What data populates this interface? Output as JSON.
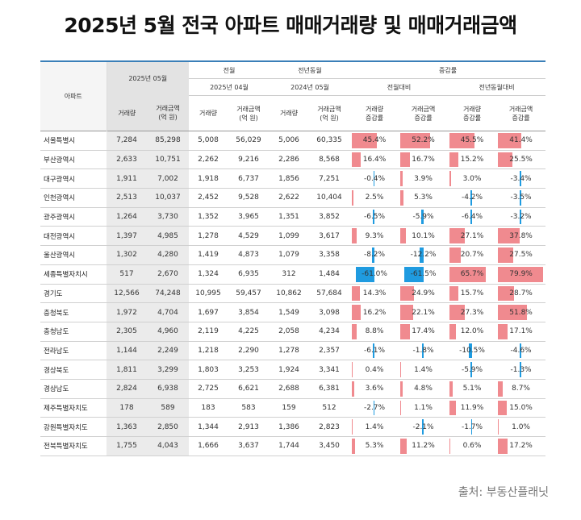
{
  "title": "2025년 5월 전국 아파트 매매거래량 및 매매거래금액",
  "source": "출처: 부동산플래닛",
  "colors": {
    "positive_bar": "#f08a8f",
    "negative_bar": "#1f9be0",
    "header_fill": "#e3e3e3",
    "accent_line": "#3a7fb8"
  },
  "chart_data": {
    "type": "table",
    "headers": {
      "region": "아파트",
      "current": "2025년 05월",
      "prev_month_group": "전월",
      "prev_month": "2025년 04월",
      "prev_year_group": "전년동월",
      "prev_year": "2024년 05월",
      "rate_group": "증감률",
      "vs_prev_month": "전월대비",
      "vs_prev_year": "전년동월대비",
      "volume": "거래량",
      "amount": "거래금액\n(억 원)",
      "volume_rate": "거래량\n증감률",
      "amount_rate": "거래금액\n증감률"
    },
    "rows": [
      {
        "region": "서울특별시",
        "v25_05": "7,284",
        "a25_05": "85,298",
        "v25_04": "5,008",
        "a25_04": "56,029",
        "v24_05": "5,006",
        "a24_05": "60,335",
        "mom_v": "45.4%",
        "mom_a": "52.2%",
        "yoy_v": "45.5%",
        "yoy_a": "41.4%"
      },
      {
        "region": "부산광역시",
        "v25_05": "2,633",
        "a25_05": "10,751",
        "v25_04": "2,262",
        "a25_04": "9,216",
        "v24_05": "2,286",
        "a24_05": "8,568",
        "mom_v": "16.4%",
        "mom_a": "16.7%",
        "yoy_v": "15.2%",
        "yoy_a": "25.5%"
      },
      {
        "region": "대구광역시",
        "v25_05": "1,911",
        "a25_05": "7,002",
        "v25_04": "1,918",
        "a25_04": "6,737",
        "v24_05": "1,856",
        "a24_05": "7,251",
        "mom_v": "-0.4%",
        "mom_a": "3.9%",
        "yoy_v": "3.0%",
        "yoy_a": "-3.4%"
      },
      {
        "region": "인천광역시",
        "v25_05": "2,513",
        "a25_05": "10,037",
        "v25_04": "2,452",
        "a25_04": "9,528",
        "v24_05": "2,622",
        "a24_05": "10,404",
        "mom_v": "2.5%",
        "mom_a": "5.3%",
        "yoy_v": "-4.2%",
        "yoy_a": "-3.5%"
      },
      {
        "region": "광주광역시",
        "v25_05": "1,264",
        "a25_05": "3,730",
        "v25_04": "1,352",
        "a25_04": "3,965",
        "v24_05": "1,351",
        "a24_05": "3,852",
        "mom_v": "-6.5%",
        "mom_a": "-5.9%",
        "yoy_v": "-6.4%",
        "yoy_a": "-3.2%"
      },
      {
        "region": "대전광역시",
        "v25_05": "1,397",
        "a25_05": "4,985",
        "v25_04": "1,278",
        "a25_04": "4,529",
        "v24_05": "1,099",
        "a24_05": "3,617",
        "mom_v": "9.3%",
        "mom_a": "10.1%",
        "yoy_v": "27.1%",
        "yoy_a": "37.8%"
      },
      {
        "region": "울산광역시",
        "v25_05": "1,302",
        "a25_05": "4,280",
        "v25_04": "1,419",
        "a25_04": "4,873",
        "v24_05": "1,079",
        "a24_05": "3,358",
        "mom_v": "-8.2%",
        "mom_a": "-12.2%",
        "yoy_v": "20.7%",
        "yoy_a": "27.5%"
      },
      {
        "region": "세종특별자치시",
        "v25_05": "517",
        "a25_05": "2,670",
        "v25_04": "1,324",
        "a25_04": "6,935",
        "v24_05": "312",
        "a24_05": "1,484",
        "mom_v": "-61.0%",
        "mom_a": "-61.5%",
        "yoy_v": "65.7%",
        "yoy_a": "79.9%"
      },
      {
        "region": "경기도",
        "v25_05": "12,566",
        "a25_05": "74,248",
        "v25_04": "10,995",
        "a25_04": "59,457",
        "v24_05": "10,862",
        "a24_05": "57,684",
        "mom_v": "14.3%",
        "mom_a": "24.9%",
        "yoy_v": "15.7%",
        "yoy_a": "28.7%"
      },
      {
        "region": "충청북도",
        "v25_05": "1,972",
        "a25_05": "4,704",
        "v25_04": "1,697",
        "a25_04": "3,854",
        "v24_05": "1,549",
        "a24_05": "3,098",
        "mom_v": "16.2%",
        "mom_a": "22.1%",
        "yoy_v": "27.3%",
        "yoy_a": "51.8%"
      },
      {
        "region": "충청남도",
        "v25_05": "2,305",
        "a25_05": "4,960",
        "v25_04": "2,119",
        "a25_04": "4,225",
        "v24_05": "2,058",
        "a24_05": "4,234",
        "mom_v": "8.8%",
        "mom_a": "17.4%",
        "yoy_v": "12.0%",
        "yoy_a": "17.1%"
      },
      {
        "region": "전라남도",
        "v25_05": "1,144",
        "a25_05": "2,249",
        "v25_04": "1,218",
        "a25_04": "2,290",
        "v24_05": "1,278",
        "a24_05": "2,357",
        "mom_v": "-6.1%",
        "mom_a": "-1.8%",
        "yoy_v": "-10.5%",
        "yoy_a": "-4.6%"
      },
      {
        "region": "경상북도",
        "v25_05": "1,811",
        "a25_05": "3,299",
        "v25_04": "1,803",
        "a25_04": "3,253",
        "v24_05": "1,924",
        "a24_05": "3,341",
        "mom_v": "0.4%",
        "mom_a": "1.4%",
        "yoy_v": "-5.9%",
        "yoy_a": "-1.3%"
      },
      {
        "region": "경상남도",
        "v25_05": "2,824",
        "a25_05": "6,938",
        "v25_04": "2,725",
        "a25_04": "6,621",
        "v24_05": "2,688",
        "a24_05": "6,381",
        "mom_v": "3.6%",
        "mom_a": "4.8%",
        "yoy_v": "5.1%",
        "yoy_a": "8.7%"
      },
      {
        "region": "제주특별자치도",
        "v25_05": "178",
        "a25_05": "589",
        "v25_04": "183",
        "a25_04": "583",
        "v24_05": "159",
        "a24_05": "512",
        "mom_v": "-2.7%",
        "mom_a": "1.1%",
        "yoy_v": "11.9%",
        "yoy_a": "15.0%"
      },
      {
        "region": "강원특별자치도",
        "v25_05": "1,363",
        "a25_05": "2,850",
        "v25_04": "1,344",
        "a25_04": "2,913",
        "v24_05": "1,386",
        "a24_05": "2,823",
        "mom_v": "1.4%",
        "mom_a": "-2.1%",
        "yoy_v": "-1.7%",
        "yoy_a": "1.0%"
      },
      {
        "region": "전북특별자치도",
        "v25_05": "1,755",
        "a25_05": "4,043",
        "v25_04": "1,666",
        "a25_04": "3,637",
        "v24_05": "1,744",
        "a24_05": "3,450",
        "mom_v": "5.3%",
        "mom_a": "11.2%",
        "yoy_v": "0.6%",
        "yoy_a": "17.2%"
      }
    ]
  }
}
